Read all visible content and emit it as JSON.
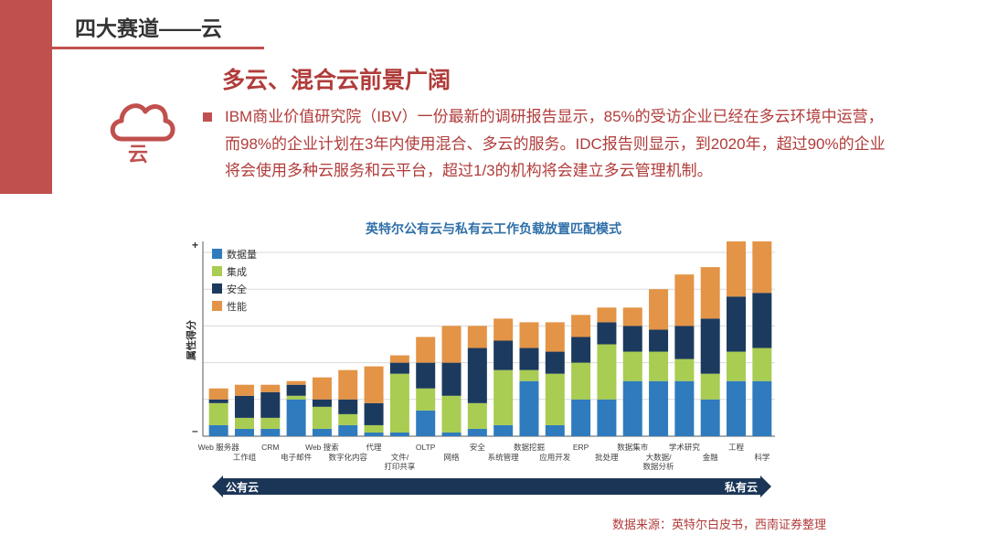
{
  "header": {
    "title": "四大赛道——云"
  },
  "section": {
    "subtitle": "多云、混合云前景广阔",
    "badge_label": "云",
    "paragraph": "IBM商业价值研究院（IBV）一份最新的调研报告显示，85%的受访企业已经在多云环境中运营，而98%的企业计划在3年内使用混合、多云的服务。IDC报告则显示，到2020年，超过90%的企业将会使用多种云服务和云平台，超过1/3的机构将会建立多云管理机制。"
  },
  "colors": {
    "accent": "#c0504d",
    "title_blue": "#2f6fa9",
    "arrow_navy": "#1b3557"
  },
  "chart_data": {
    "type": "bar",
    "stacked": true,
    "title": "英特尔公有云与私有云工作负载放置匹配模式",
    "ylabel": "属性得分",
    "y_tick_labels": {
      "top": "+",
      "bottom": "–"
    },
    "ylim": [
      0,
      5.2
    ],
    "grid": true,
    "legend_position": "top-left",
    "categories": [
      [
        "Web 服务器"
      ],
      [
        "工作组"
      ],
      [
        "CRM"
      ],
      [
        "电子邮件"
      ],
      [
        "Web 搜索"
      ],
      [
        "数字化内容"
      ],
      [
        "代理"
      ],
      [
        "文件/",
        "打印共享"
      ],
      [
        "OLTP"
      ],
      [
        "网络"
      ],
      [
        "安全"
      ],
      [
        "系统管理"
      ],
      [
        "数据挖掘"
      ],
      [
        "应用开发"
      ],
      [
        "ERP"
      ],
      [
        "批处理"
      ],
      [
        "数据集市"
      ],
      [
        "大数据/",
        "数据分析"
      ],
      [
        "学术研究"
      ],
      [
        "金融"
      ],
      [
        "工程"
      ],
      [
        "科学"
      ]
    ],
    "series": [
      {
        "name": "数据量",
        "color": "#2f7bbd",
        "values": [
          0.3,
          0.2,
          0.2,
          1.0,
          0.2,
          0.3,
          0.1,
          0.1,
          0.7,
          0.1,
          0.2,
          0.3,
          1.5,
          0.3,
          1.0,
          1.0,
          1.5,
          1.5,
          1.5,
          1.0,
          1.5,
          1.5
        ]
      },
      {
        "name": "集成",
        "color": "#a9cc52",
        "values": [
          0.6,
          0.3,
          0.3,
          0.1,
          0.6,
          0.3,
          0.2,
          1.6,
          0.6,
          1.0,
          0.7,
          1.5,
          0.3,
          1.4,
          1.0,
          1.5,
          0.8,
          0.8,
          0.6,
          0.7,
          0.8,
          0.9
        ]
      },
      {
        "name": "安全",
        "color": "#1b3a5e",
        "values": [
          0.1,
          0.6,
          0.7,
          0.3,
          0.2,
          0.4,
          0.6,
          0.3,
          0.7,
          0.9,
          1.5,
          0.8,
          0.6,
          0.6,
          0.7,
          0.6,
          0.7,
          0.6,
          0.9,
          1.5,
          1.5,
          1.5
        ]
      },
      {
        "name": "性能",
        "color": "#e39446",
        "values": [
          0.3,
          0.3,
          0.2,
          0.1,
          0.6,
          0.8,
          1.0,
          0.2,
          0.7,
          1.0,
          0.6,
          0.6,
          0.7,
          0.8,
          0.6,
          0.4,
          0.5,
          1.1,
          1.4,
          1.4,
          1.5,
          1.4
        ]
      }
    ],
    "arrow": {
      "left_label": "公有云",
      "right_label": "私有云"
    }
  },
  "source": "数据来源：英特尔白皮书，西南证券整理"
}
